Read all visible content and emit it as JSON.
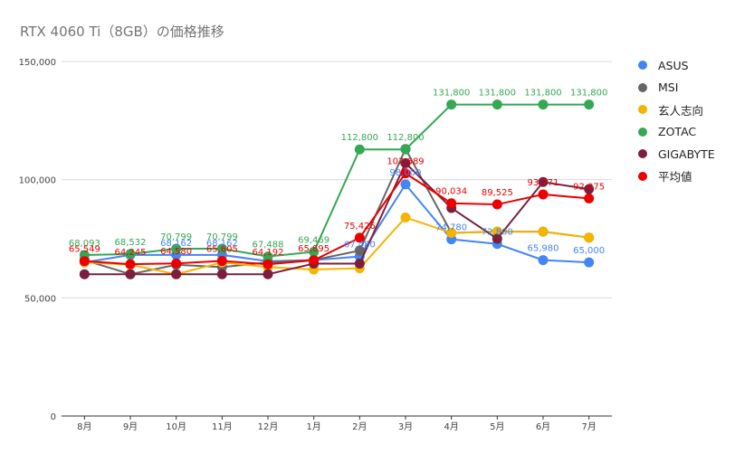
{
  "chart_data": {
    "type": "line",
    "title": "RTX 4060 Ti（8GB）の価格推移",
    "categories": [
      "8月",
      "9月",
      "10月",
      "11月",
      "12月",
      "1月",
      "2月",
      "3月",
      "4月",
      "5月",
      "6月",
      "7月"
    ],
    "ylim": [
      0,
      150000
    ],
    "yticks": [
      "0",
      "50,000",
      "100,000",
      "150,000"
    ],
    "grid": true,
    "legend_position": "right",
    "series": [
      {
        "name": "ASUS",
        "color": "#4285f4",
        "values": [
          65000,
          68162,
          68162,
          68162,
          65500,
          66000,
          67480,
          98000,
          74780,
          72800,
          65980,
          65000
        ],
        "labels": [
          "",
          "",
          "68,162",
          "68,162",
          "",
          "",
          "67,480",
          "98,000",
          "74,780",
          "72,800",
          "65,980",
          "65,000"
        ]
      },
      {
        "name": "MSI",
        "color": "#666666",
        "values": [
          66000,
          60000,
          64000,
          63000,
          65000,
          66000,
          70000,
          113000,
          77500,
          78000,
          78000,
          75500
        ],
        "labels": []
      },
      {
        "name": "玄人志向",
        "color": "#f4b400",
        "values": [
          65000,
          64000,
          60000,
          65000,
          63000,
          62000,
          62500,
          84000,
          77500,
          78000,
          78000,
          75500
        ],
        "labels": []
      },
      {
        "name": "ZOTAC",
        "color": "#34a853",
        "values": [
          68093,
          68532,
          70799,
          70799,
          67488,
          69469,
          112800,
          112800,
          131800,
          131800,
          131800,
          131800
        ],
        "labels": [
          "68,093",
          "68,532",
          "70,799",
          "70,799",
          "67,488",
          "69,469",
          "112,800",
          "112,800",
          "131,800",
          "131,800",
          "131,800",
          "131,800"
        ]
      },
      {
        "name": "GIGABYTE",
        "color": "#7b1f3c",
        "values": [
          60000,
          60000,
          60000,
          60000,
          60000,
          64500,
          64500,
          107000,
          88000,
          75000,
          99000,
          96000
        ],
        "labels": []
      },
      {
        "name": "平均値",
        "color": "#ea0000",
        "values": [
          65549,
          64245,
          64580,
          65605,
          64192,
          65895,
          75426,
          102689,
          90034,
          89525,
          93771,
          92075
        ],
        "labels": [
          "65,549",
          "64,245",
          "64,580",
          "65,605",
          "64,192",
          "65,895",
          "75,426",
          "102,689",
          "90,034",
          "89,525",
          "93,771",
          "92,075"
        ]
      }
    ]
  }
}
